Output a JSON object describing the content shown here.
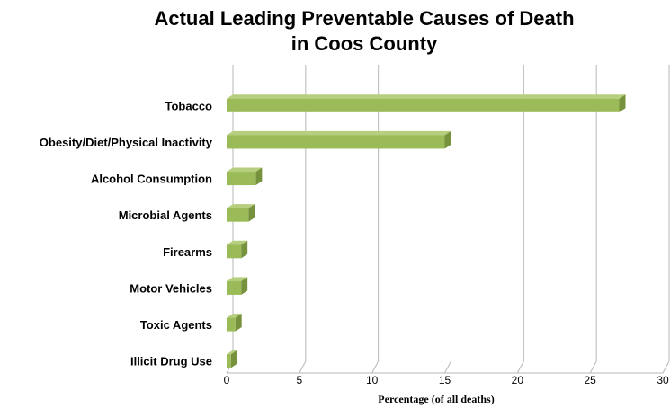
{
  "chart_data": {
    "type": "bar",
    "orientation": "horizontal",
    "title": [
      "Actual Leading Preventable Causes of Death",
      "in Coos County"
    ],
    "xlabel": "Percentage (of all deaths)",
    "ylabel": "",
    "categories": [
      "Tobacco",
      "Obesity/Diet/Physical Inactivity",
      "Alcohol Consumption",
      "Microbial Agents",
      "Firearms",
      "Motor Vehicles",
      "Toxic Agents",
      "Illicit Drug Use"
    ],
    "values": [
      27,
      15,
      2,
      1.5,
      1,
      1,
      0.6,
      0.3
    ],
    "xlim": [
      0,
      30
    ],
    "xticks": [
      0,
      5,
      10,
      15,
      20,
      25,
      30
    ],
    "grid": true,
    "legend": "none",
    "colors": {
      "bar_face": "#9bbb59",
      "bar_top": "#b5cf7e",
      "bar_side": "#76923c",
      "grid": "#b7b7b7"
    }
  }
}
